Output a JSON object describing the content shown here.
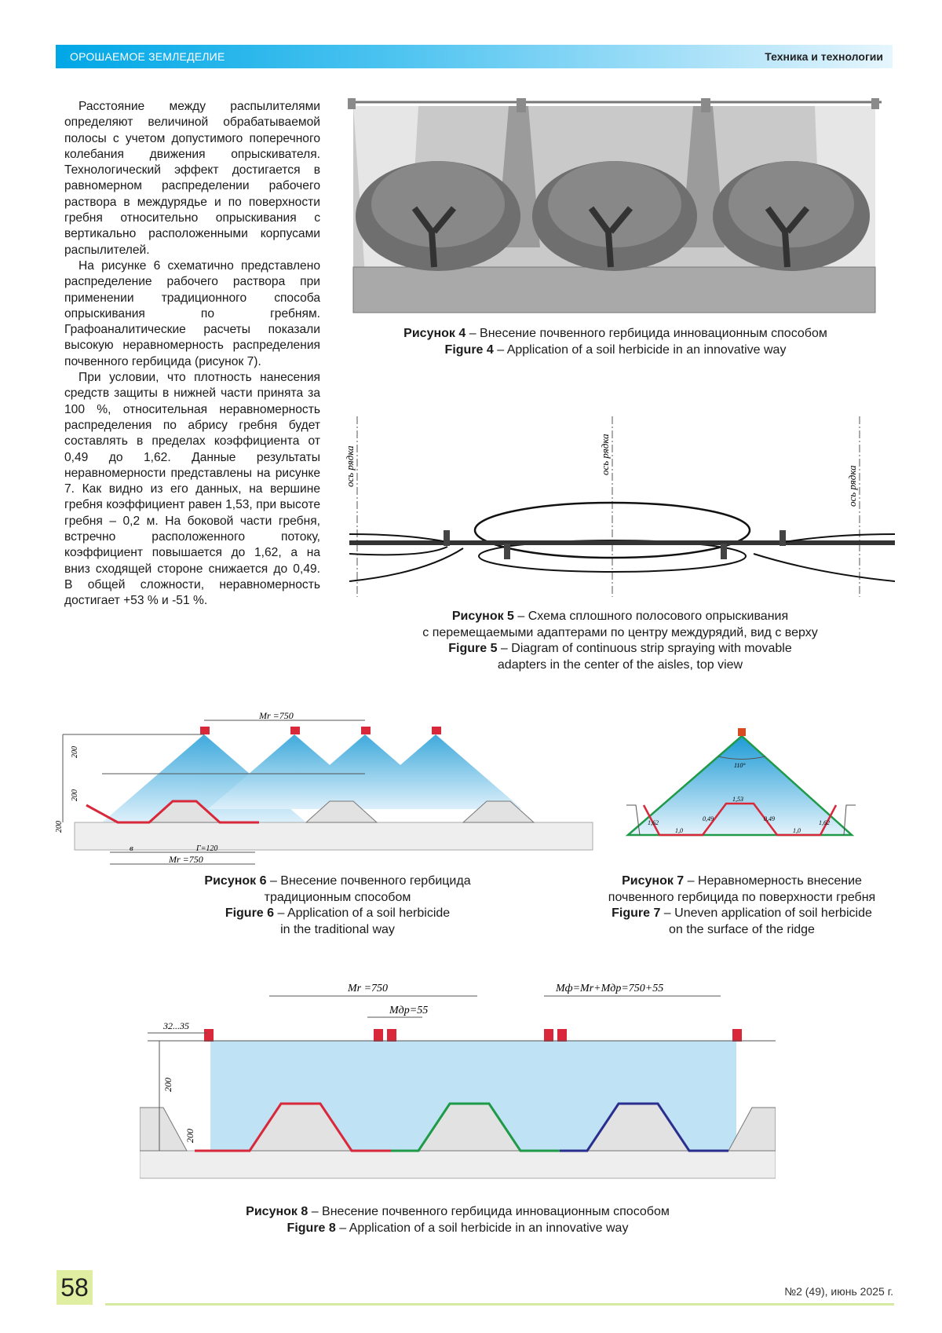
{
  "header": {
    "journal": "ОРОШАЕМОЕ ЗЕМЛЕДЕЛИЕ",
    "section": "Техника и технологии"
  },
  "body": {
    "paragraphs": [
      "Расстояние между распылителями определяют величиной обрабатываемой полосы с учетом допустимого поперечного колебания движения опрыскивателя. Технологический эффект достигается в равномерном распределении рабочего раствора в междурядье и по поверхности гребня относительно опрыскивания с вертикально расположенными корпусами распылителей.",
      "На рисунке 6 схематично представлено распределение рабочего раствора при применении традиционного способа опрыскивания по гребням. Графоаналитические расчеты показали высокую неравномерность распределения почвенного гербицида (рисунок 7).",
      "При условии, что плотность нанесения средств защиты в нижней части принята за 100 %, относительная неравномерность распределения по абрису гребня будет составлять в пределах коэффициента от 0,49 до 1,62. Данные результаты неравномерности представлены на рисунке 7. Как видно из его данных, на вершине гребня коэффициент равен 1,53, при высоте гребня – 0,2 м. На боковой части гребня, встречно расположенного потоку, коэффициент повышается до 1,62, а на вниз сходящей стороне снижается до 0,49. В общей сложности, неравномерность достигает +53 % и -51 %."
    ]
  },
  "figures": {
    "fig4": {
      "ru_label": "Рисунок 4",
      "ru_text": " – Внесение почвенного гербицида инновационным способом",
      "en_label": "Figure 4",
      "en_text": " – Application of a soil herbicide in an innovative way"
    },
    "fig5": {
      "ru_label": "Рисунок 5",
      "ru_text1": " – Схема сплошного полосового опрыскивания",
      "ru_text2": "с перемещаемыми адаптерами по центру междурядий, вид с верху",
      "en_label": "Figure 5",
      "en_text1": " – Diagram of continuous strip spraying with movable",
      "en_text2": "adapters in the center of the aisles, top view",
      "axis_label": "ось рядка"
    },
    "fig6": {
      "ru_label": "Рисунок 6",
      "ru_text1": " – Внесение почвенного гербицида",
      "ru_text2": "традиционным способом",
      "en_label": "Figure 6",
      "en_text1": " – Application of a soil herbicide",
      "en_text2": "in the traditional way",
      "dim_top": "Mr =750",
      "dim_bottom": "Mr =750",
      "dim_h1": "200",
      "dim_h2": "200",
      "dim_h3": "200",
      "dim_b": "в",
      "dim_g": "Г=120"
    },
    "fig7": {
      "ru_label": "Рисунок 7",
      "ru_text1": " – Неравномерность внесение",
      "ru_text2": "почвенного гербицида по поверхности гребня",
      "en_label": "Figure 7",
      "en_text1": " – Uneven application of soil herbicide",
      "en_text2": "on the surface of the ridge",
      "angle": "110°",
      "coefficients": [
        "1,62",
        "1,0",
        "0,49",
        "1,53",
        "0,49",
        "1,0",
        "1,62"
      ]
    },
    "fig8": {
      "ru_label": "Рисунок 8",
      "ru_text": " – Внесение почвенного гербицида инновационным способом",
      "en_label": "Figure 8",
      "en_text": " – Application of a soil herbicide in an innovative way",
      "dim_gap": "32...35",
      "dim_mr": "Mr =750",
      "dim_mdr": "Mдр=55",
      "dim_mf": "Mф=Mr+Mдр=750+55",
      "dim_h1": "200",
      "dim_h2": "200"
    }
  },
  "footer": {
    "page": "58",
    "issue": "№2 (49), июнь 2025 г."
  },
  "colors": {
    "header": "#00a7e6",
    "footer_accent": "#dfeea0",
    "spray": "#4aaee0",
    "ridge_red": "#d8283a",
    "ridge_green": "#1f9a48",
    "ridge_blue": "#2a2f8f"
  }
}
